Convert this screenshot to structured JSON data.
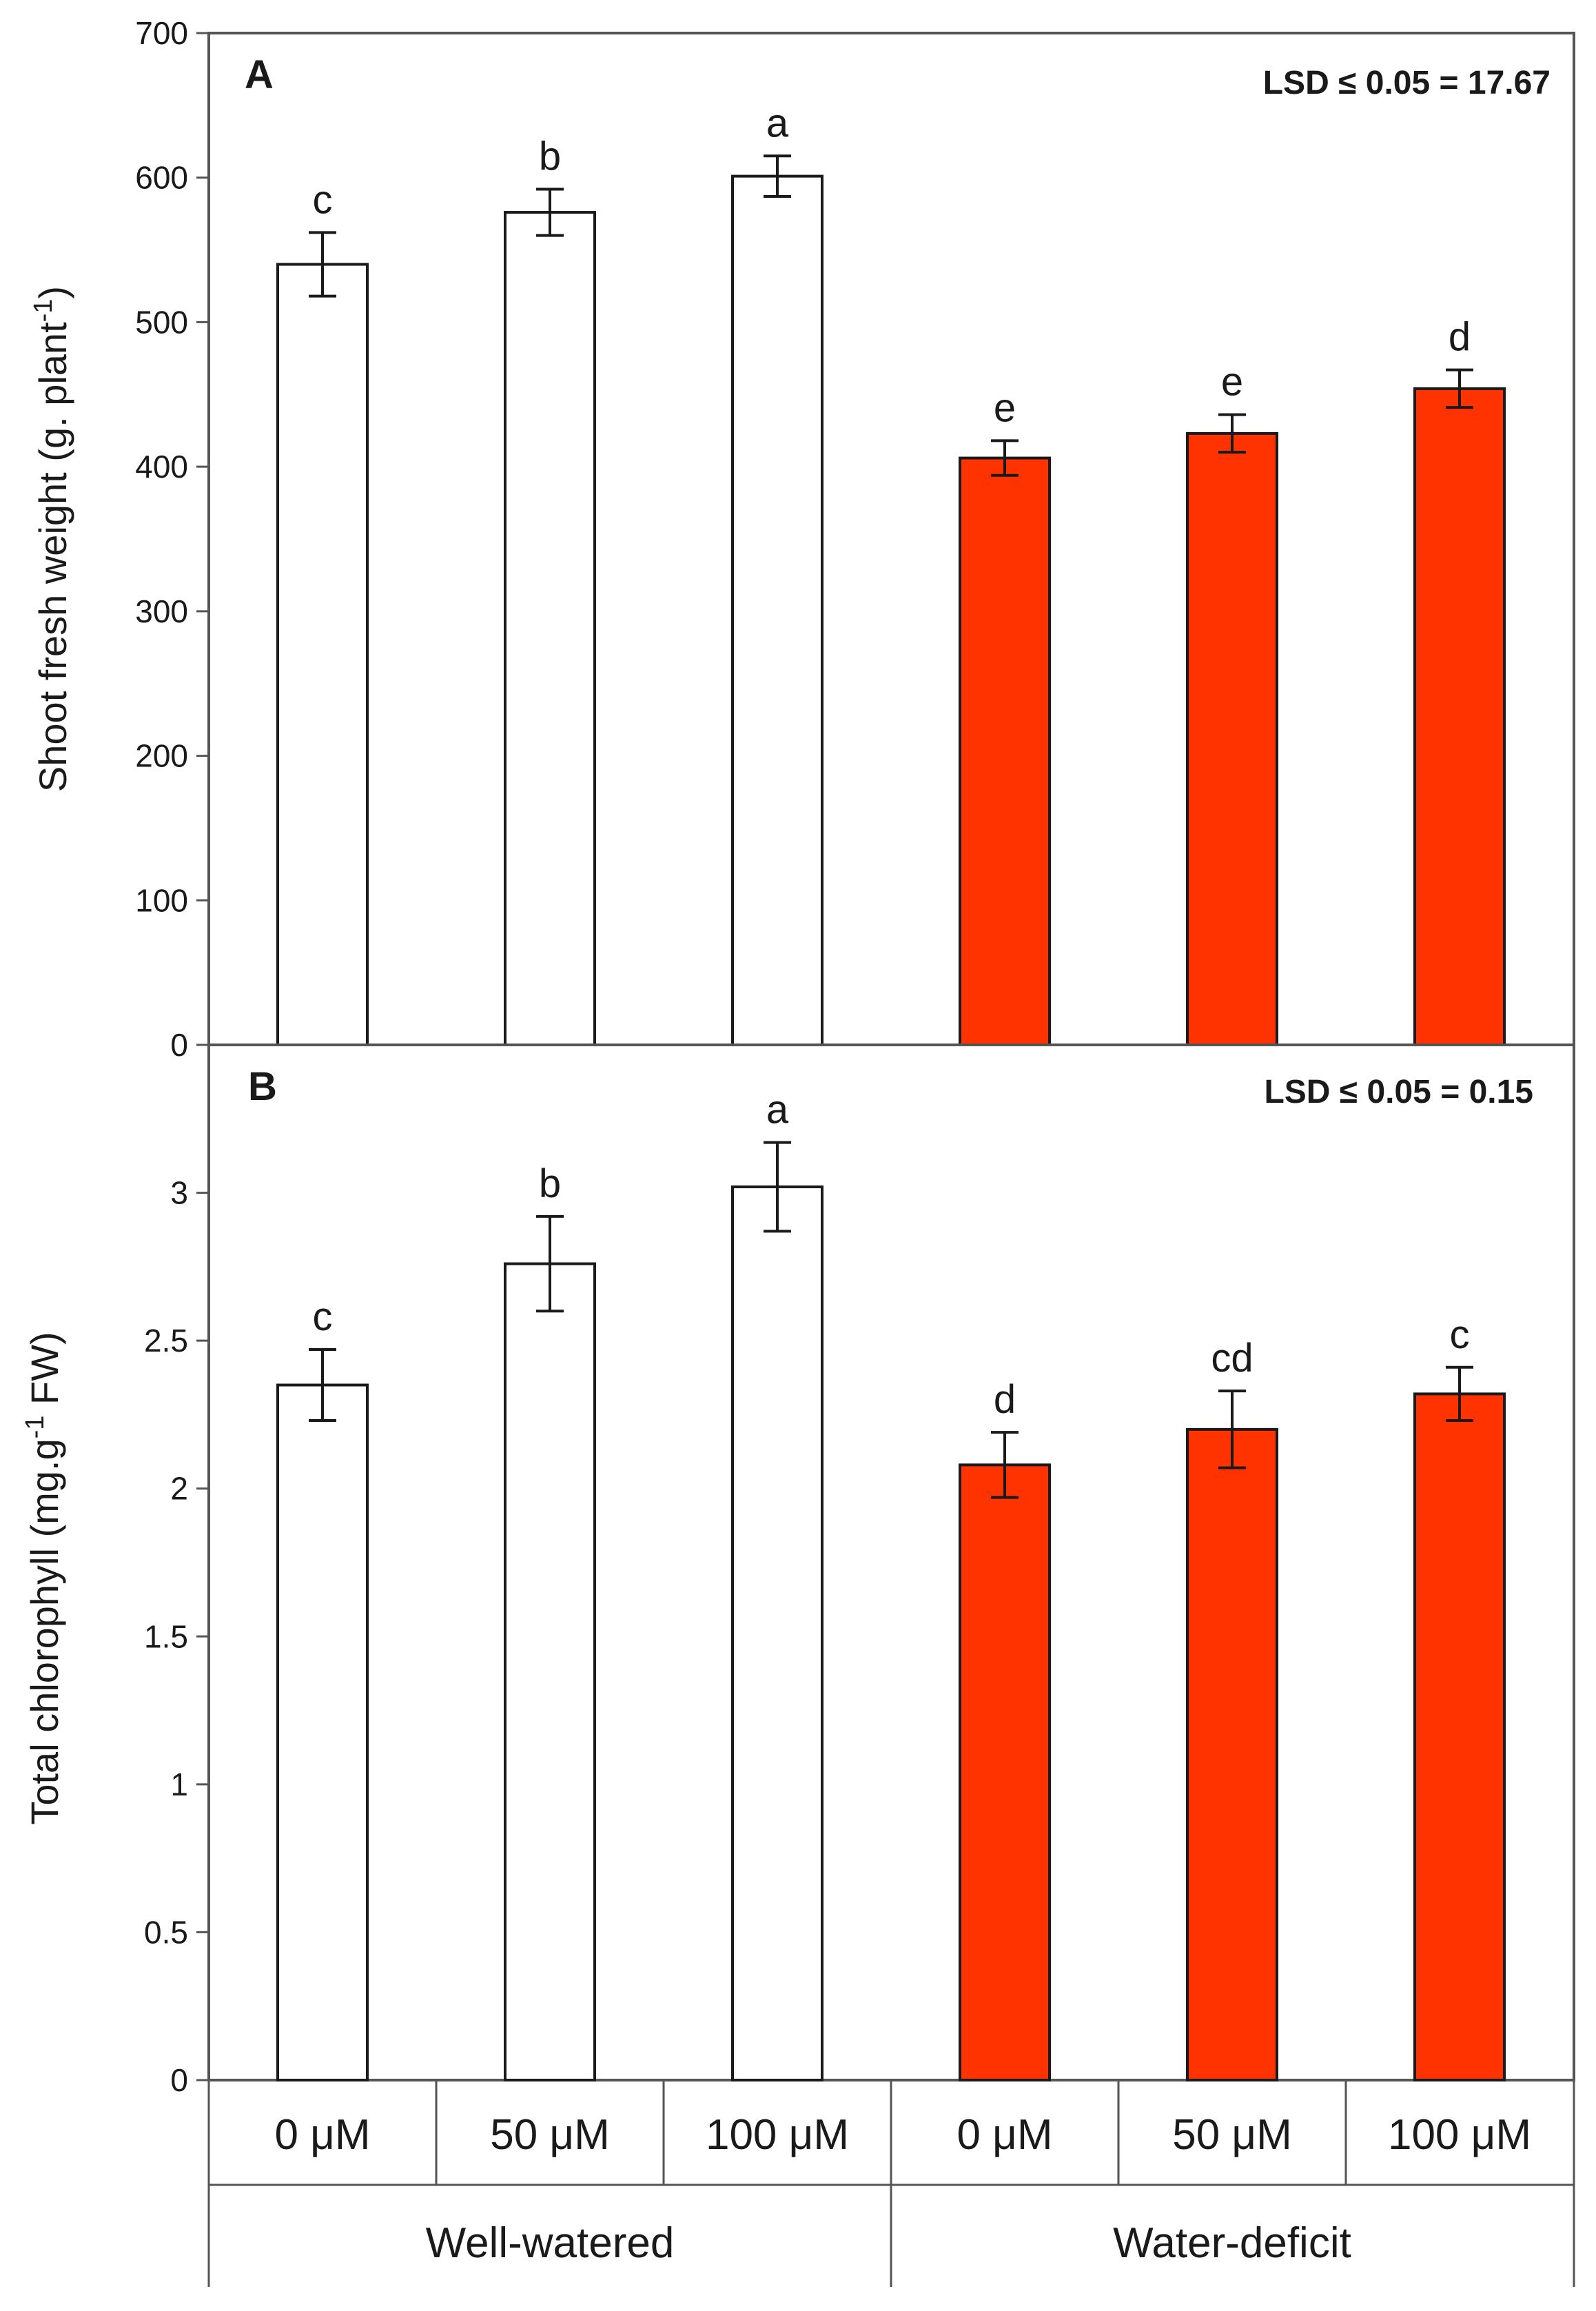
{
  "chart_data": [
    {
      "type": "bar",
      "panel_label": "A",
      "ylabel_main": "Shoot fresh weight (g. plant",
      "ylabel_sup": "-1",
      "ylabel_end": ")",
      "annotation": "LSD ≤ 0.05 = 17.67",
      "ylim": [
        0,
        700
      ],
      "yticks": [
        "0",
        "100",
        "200",
        "300",
        "400",
        "500",
        "600",
        "700"
      ],
      "categories": [
        "0 μM",
        "50 μM",
        "100 μM",
        "0 μM",
        "50 μM",
        "100 μM"
      ],
      "groups": [
        "Well-watered",
        "Water-deficit"
      ],
      "values": [
        540,
        576,
        601,
        406,
        423,
        454
      ],
      "errors": [
        22,
        16,
        14,
        12,
        13,
        13
      ],
      "letters": [
        "c",
        "b",
        "a",
        "e",
        "e",
        "d"
      ],
      "colors": [
        "#ffffff",
        "#ffffff",
        "#ffffff",
        "#ff3300",
        "#ff3300",
        "#ff3300"
      ]
    },
    {
      "type": "bar",
      "panel_label": "B",
      "ylabel_main": "Total chlorophyll (mg.g",
      "ylabel_sup": "-1",
      "ylabel_end": " FW)",
      "annotation": "LSD ≤ 0.05 =   0.15",
      "ylim": [
        0,
        3.5
      ],
      "yticks": [
        "0",
        "0.5",
        "1",
        "1.5",
        "2",
        "2.5",
        "3"
      ],
      "categories": [
        "0 μM",
        "50 μM",
        "100 μM",
        "0 μM",
        "50 μM",
        "100 μM"
      ],
      "groups": [
        "Well-watered",
        "Water-deficit"
      ],
      "values": [
        2.35,
        2.76,
        3.02,
        2.08,
        2.2,
        2.32
      ],
      "errors": [
        0.12,
        0.16,
        0.15,
        0.11,
        0.13,
        0.09
      ],
      "letters": [
        "c",
        "b",
        "a",
        "d",
        "cd",
        "c"
      ],
      "colors": [
        "#ffffff",
        "#ffffff",
        "#ffffff",
        "#ff3300",
        "#ff3300",
        "#ff3300"
      ]
    }
  ]
}
